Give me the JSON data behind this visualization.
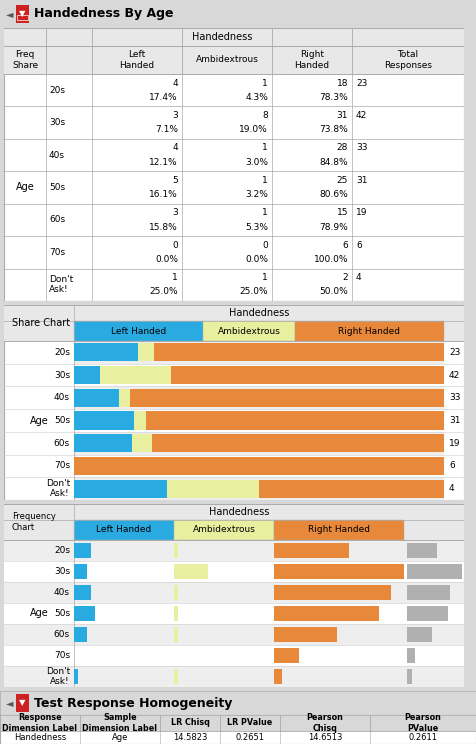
{
  "title": "Handedness By Age",
  "age_groups": [
    "20s",
    "30s",
    "40s",
    "50s",
    "60s",
    "70s",
    "Don't\nAsk!"
  ],
  "left_handed": [
    4,
    3,
    4,
    5,
    3,
    0,
    1
  ],
  "ambidextrous": [
    1,
    8,
    1,
    1,
    1,
    0,
    1
  ],
  "right_handed": [
    18,
    31,
    28,
    25,
    15,
    6,
    2
  ],
  "totals": [
    23,
    42,
    33,
    31,
    19,
    6,
    4
  ],
  "left_pct": [
    "17.4%",
    "7.1%",
    "12.1%",
    "16.1%",
    "15.8%",
    "0.0%",
    "25.0%"
  ],
  "ambi_pct": [
    "4.3%",
    "19.0%",
    "3.0%",
    "3.2%",
    "5.3%",
    "0.0%",
    "25.0%"
  ],
  "right_pct": [
    "78.3%",
    "73.8%",
    "84.8%",
    "80.6%",
    "78.9%",
    "100.0%",
    "50.0%"
  ],
  "color_left": "#29ABE2",
  "color_ambi": "#E8F0A0",
  "color_right": "#E8883A",
  "color_gray": "#B0B0B0",
  "test_title": "Test Response Homogeneity",
  "resp_label": "Handedness",
  "sample_label": "Age",
  "lr_chisq": "14.5823",
  "lr_pvalue": "0.2651",
  "pearson_chisq": "14.6513",
  "pearson_pvalue": "0.2611"
}
